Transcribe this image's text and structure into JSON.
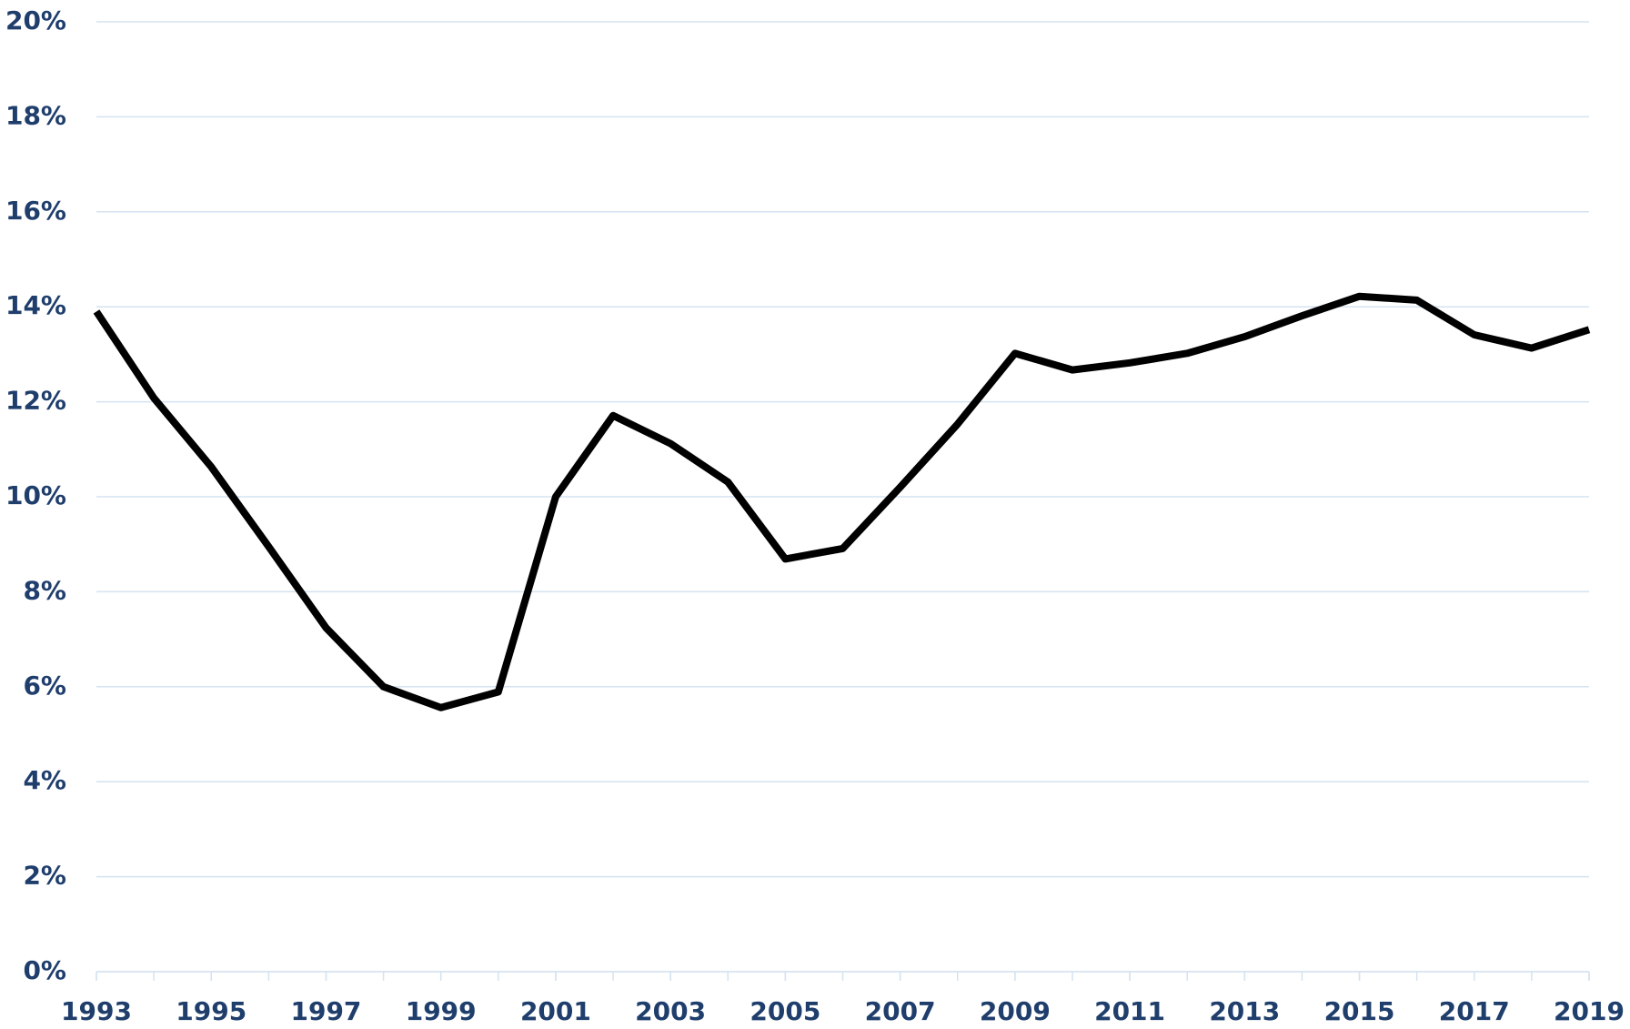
{
  "chart_data": {
    "type": "line",
    "x": [
      1993,
      1994,
      1995,
      1996,
      1997,
      1998,
      1999,
      2000,
      2001,
      2002,
      2003,
      2004,
      2005,
      2006,
      2007,
      2008,
      2009,
      2010,
      2011,
      2012,
      2013,
      2014,
      2015,
      2016,
      2017,
      2018,
      2019
    ],
    "series": [
      {
        "color": "#000000",
        "values": [
          13.9,
          12.08,
          10.63,
          8.95,
          7.24,
          6.0,
          5.56,
          5.89,
          10.0,
          11.71,
          11.12,
          10.31,
          8.69,
          8.91,
          10.2,
          11.53,
          13.02,
          12.67,
          12.82,
          13.02,
          13.37,
          13.81,
          14.22,
          14.14,
          13.41,
          13.13,
          13.52
        ]
      }
    ],
    "xlim": [
      1993,
      2019
    ],
    "xticks": [
      1993,
      1995,
      1997,
      1999,
      2001,
      2003,
      2005,
      2007,
      2009,
      2011,
      2013,
      2015,
      2017,
      2019
    ],
    "ylim": [
      0,
      20
    ],
    "yticks": [
      {
        "value": 0,
        "label": "0%"
      },
      {
        "value": 2,
        "label": "2%"
      },
      {
        "value": 4,
        "label": "4%"
      },
      {
        "value": 6,
        "label": "6%"
      },
      {
        "value": 8,
        "label": "8%"
      },
      {
        "value": 10,
        "label": "10%"
      },
      {
        "value": 12,
        "label": "12%"
      },
      {
        "value": 14,
        "label": "14%"
      },
      {
        "value": 16,
        "label": "16%"
      },
      {
        "value": 18,
        "label": "18%"
      },
      {
        "value": 20,
        "label": "20%"
      }
    ],
    "grid": true
  }
}
